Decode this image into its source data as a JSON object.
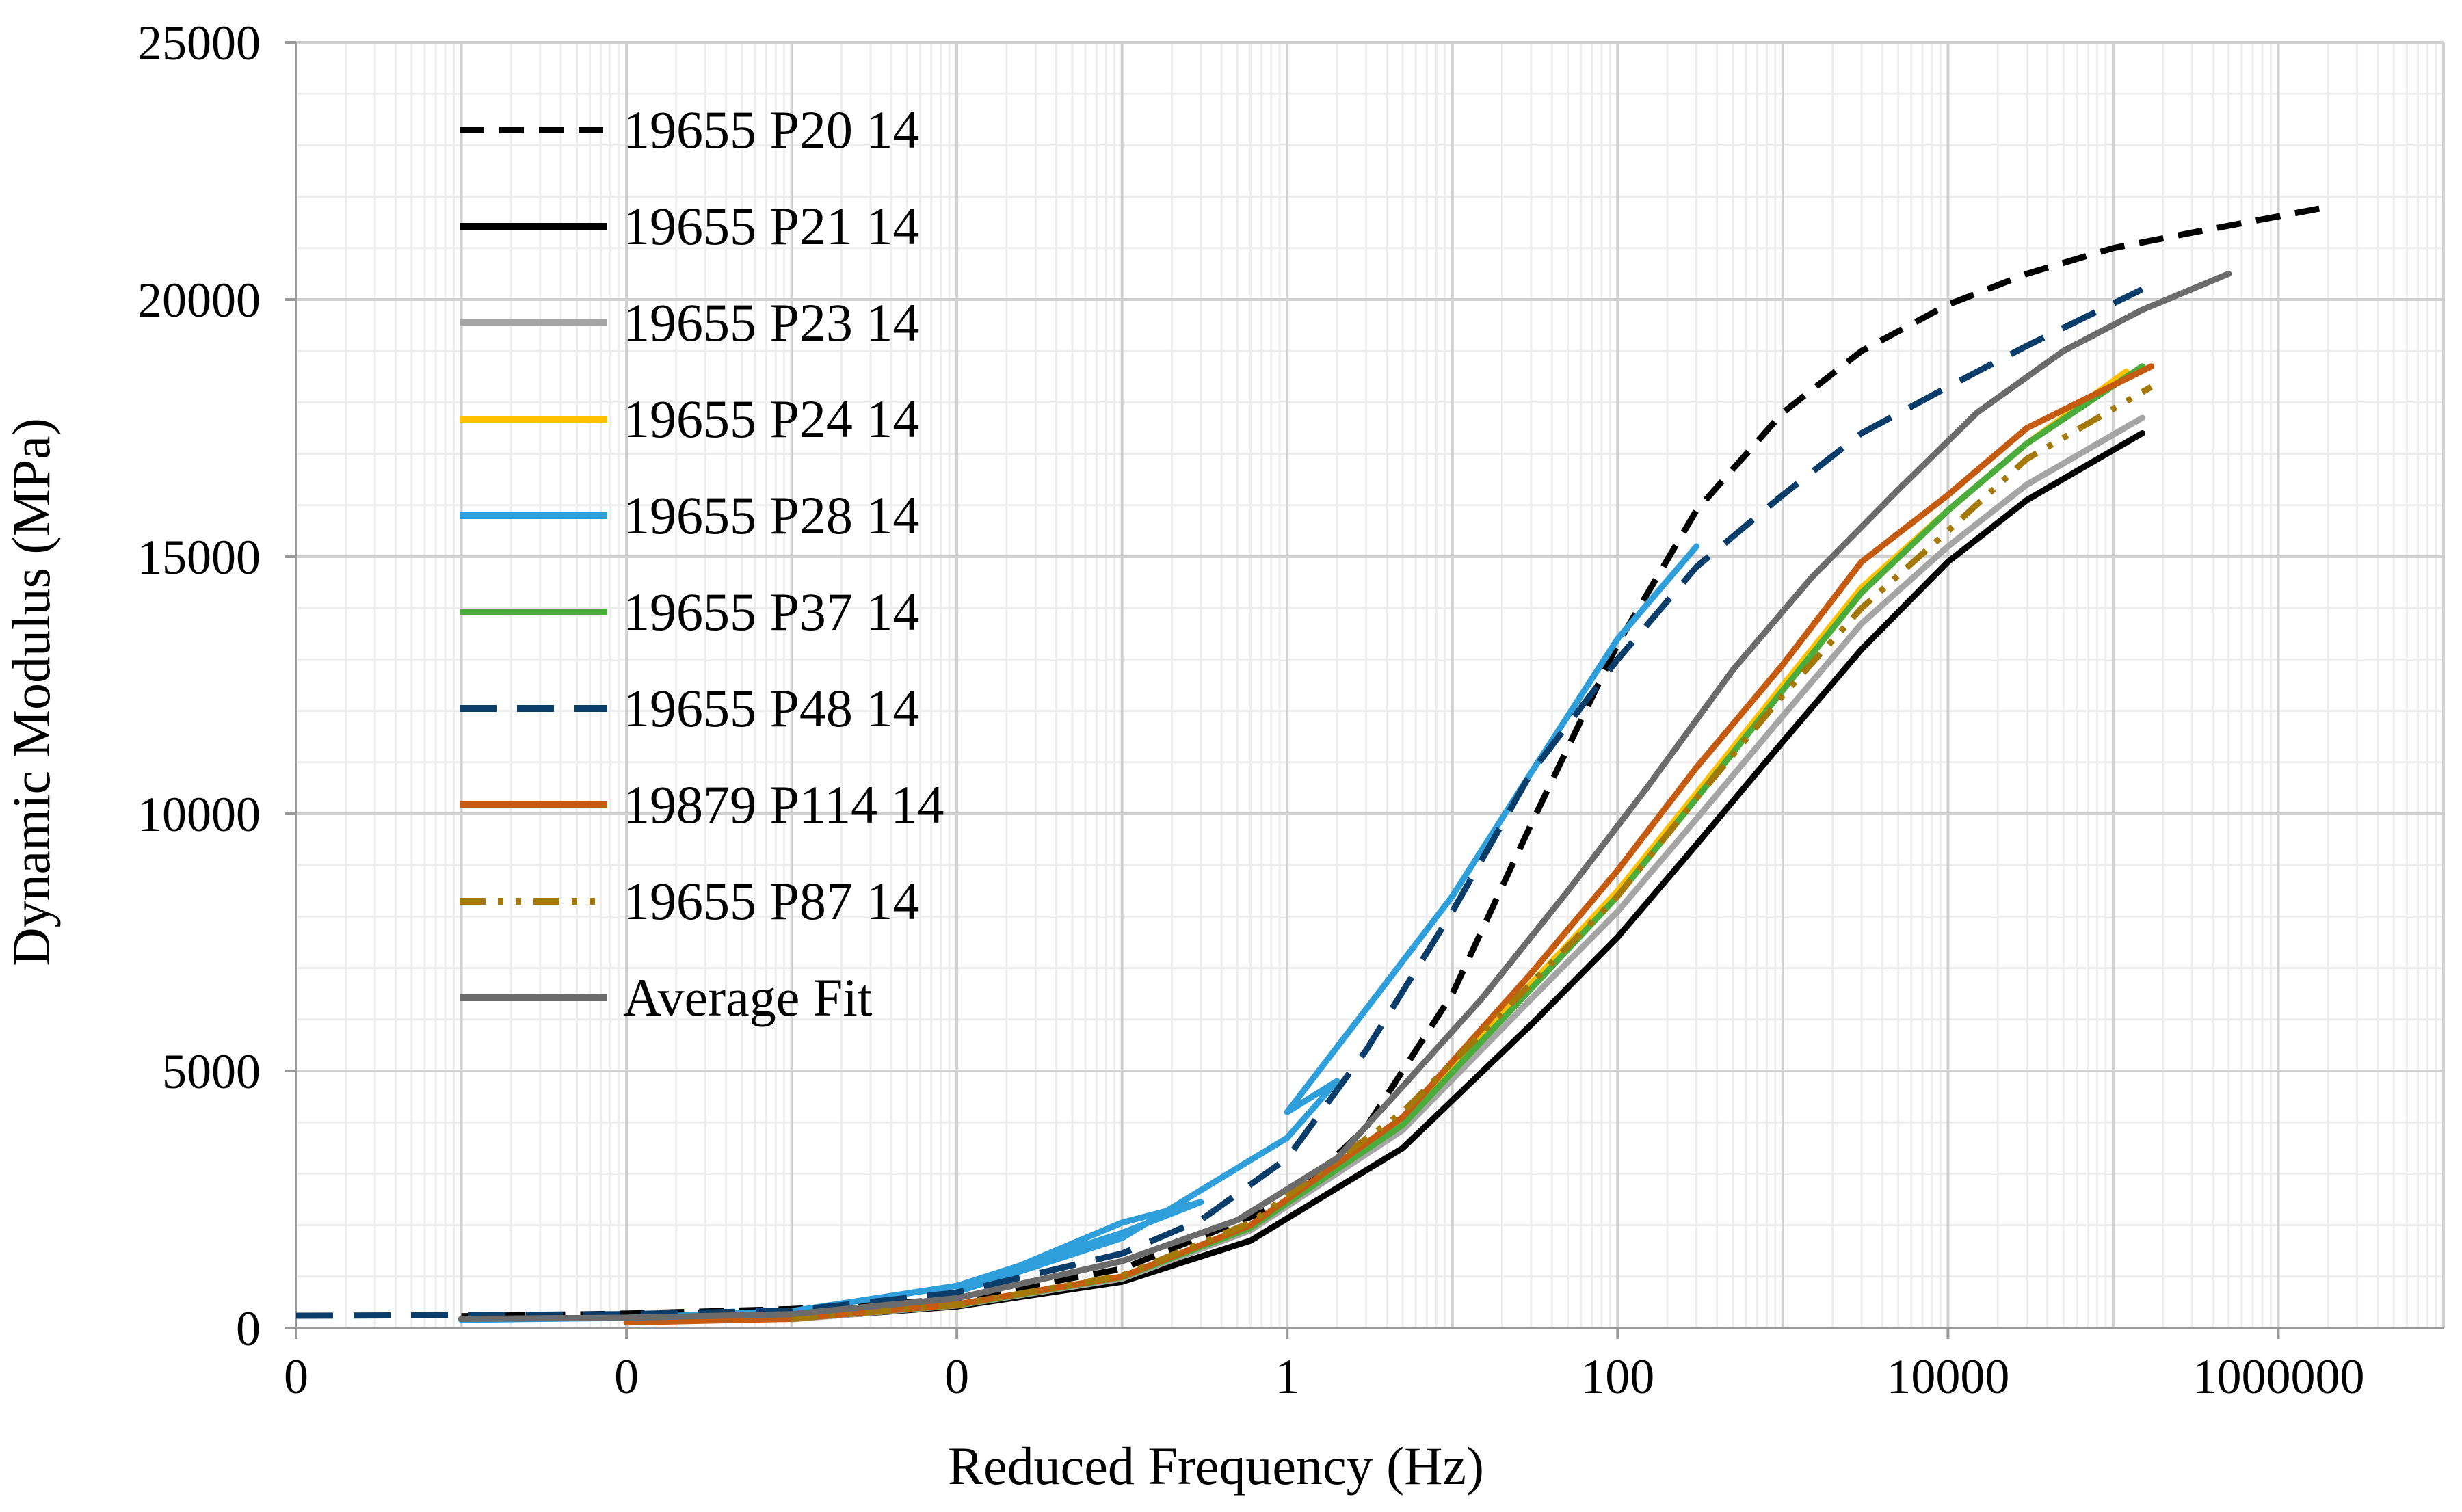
{
  "chart_data": {
    "type": "line",
    "title": "",
    "xlabel": "Reduced Frequency (Hz)",
    "ylabel": "Dynamic Modulus (MPa)",
    "xscale": "log",
    "xlim": [
      1e-06,
      10000000
    ],
    "ylim": [
      0,
      25000
    ],
    "x_tick_values": [
      1e-06,
      0.0001,
      0.01,
      1,
      100,
      10000,
      1000000
    ],
    "x_tick_labels": [
      "0",
      "0",
      "0",
      "1",
      "100",
      "10000",
      "1000000"
    ],
    "y_ticks": [
      0,
      5000,
      10000,
      15000,
      20000,
      25000
    ],
    "grid": "major and minor",
    "legend_position": "top-left",
    "series": [
      {
        "name": "19655 P20 14",
        "color": "#000000",
        "dash": "dash",
        "width": 9,
        "x": [
          1e-05,
          0.0001,
          0.001,
          0.01,
          0.1,
          1,
          3,
          10,
          30,
          100,
          300,
          1000,
          3000,
          10000,
          30000,
          100000,
          300000,
          2000000
        ],
        "y": [
          230,
          280,
          370,
          560,
          1150,
          2450,
          3900,
          6500,
          9800,
          13300,
          15900,
          17800,
          19000,
          19900,
          20500,
          21000,
          21300,
          21800
        ]
      },
      {
        "name": "19655 P21 14",
        "color": "#000000",
        "dash": "solid",
        "width": 9,
        "x": [
          0.001,
          0.01,
          0.1,
          0.6,
          5,
          30,
          100,
          300,
          1000,
          3000,
          10000,
          30000,
          150000
        ],
        "y": [
          180,
          420,
          900,
          1700,
          3500,
          5900,
          7600,
          9400,
          11400,
          13200,
          14900,
          16100,
          17400
        ]
      },
      {
        "name": "19655 P23 14",
        "color": "#a5a5a5",
        "dash": "solid",
        "width": 9,
        "x": [
          0.001,
          0.01,
          0.1,
          0.6,
          5,
          30,
          100,
          300,
          1000,
          3000,
          10000,
          30000,
          150000
        ],
        "y": [
          170,
          440,
          960,
          1900,
          3850,
          6400,
          8100,
          9900,
          11900,
          13700,
          15200,
          16400,
          17700
        ]
      },
      {
        "name": "19655 P24 14",
        "color": "#ffc000",
        "dash": "solid",
        "width": 9,
        "x": [
          0.001,
          0.01,
          0.1,
          0.6,
          5,
          30,
          100,
          300,
          1000,
          3000,
          10000,
          30000,
          120000
        ],
        "y": [
          190,
          460,
          1000,
          1950,
          4000,
          6700,
          8500,
          10400,
          12500,
          14400,
          15900,
          17200,
          18600
        ]
      },
      {
        "name": "19655 P28 14",
        "color": "#2e9fdb",
        "dash": "solid",
        "width": 9,
        "x": [
          1e-05,
          0.0001,
          0.001,
          0.01,
          0.1,
          0.3,
          0.1,
          0.01,
          0.1,
          1,
          2,
          1,
          3,
          10,
          30,
          100,
          300
        ],
        "y": [
          160,
          200,
          330,
          820,
          1850,
          2450,
          2050,
          700,
          1750,
          3700,
          4800,
          4200,
          6200,
          8400,
          10800,
          13400,
          15200
        ]
      },
      {
        "name": "19655 P37 14",
        "color": "#4aad3b",
        "dash": "solid",
        "width": 9,
        "x": [
          0.001,
          0.01,
          0.1,
          0.6,
          5,
          30,
          100,
          300,
          1000,
          3000,
          10000,
          30000,
          150000
        ],
        "y": [
          190,
          450,
          990,
          1950,
          3950,
          6600,
          8400,
          10300,
          12400,
          14300,
          15900,
          17200,
          18700
        ]
      },
      {
        "name": "19655 P48 14",
        "color": "#0b3d6b",
        "dash": "longdash",
        "width": 9,
        "x": [
          1e-06,
          1e-05,
          0.0001,
          0.001,
          0.01,
          0.1,
          0.3,
          1,
          3,
          10,
          30,
          100,
          300,
          1000,
          3000,
          10000,
          30000,
          150000
        ],
        "y": [
          240,
          250,
          270,
          340,
          690,
          1450,
          2100,
          3300,
          5400,
          8100,
          10800,
          13000,
          14800,
          16200,
          17400,
          18300,
          19100,
          20200
        ]
      },
      {
        "name": "19879 P114 14",
        "color": "#c55a11",
        "dash": "solid",
        "width": 9,
        "x": [
          0.0001,
          0.001,
          0.01,
          0.1,
          0.6,
          5,
          30,
          100,
          300,
          1000,
          3000,
          10000,
          30000,
          170000
        ],
        "y": [
          110,
          180,
          460,
          1000,
          2000,
          4100,
          6900,
          8900,
          10900,
          12900,
          14900,
          16200,
          17500,
          18700
        ]
      },
      {
        "name": "19655 P87 14",
        "color": "#a5780a",
        "dash": "dashdotdot",
        "width": 9,
        "x": [
          0.001,
          0.01,
          0.1,
          0.6,
          5,
          30,
          100,
          300,
          1000,
          3000,
          10000,
          30000,
          170000
        ],
        "y": [
          180,
          450,
          1020,
          2050,
          4200,
          6700,
          8400,
          10300,
          12300,
          14000,
          15500,
          16900,
          18300
        ]
      },
      {
        "name": "Average Fit",
        "color": "#6b6b6b",
        "dash": "solid",
        "width": 9,
        "x": [
          1e-05,
          0.0001,
          0.001,
          0.01,
          0.1,
          0.5,
          2,
          5,
          15,
          50,
          150,
          500,
          1500,
          5000,
          15000,
          50000,
          150000,
          500000
        ],
        "y": [
          180,
          200,
          270,
          580,
          1300,
          2100,
          3300,
          4700,
          6400,
          8500,
          10500,
          12800,
          14600,
          16300,
          17800,
          19000,
          19800,
          20500
        ]
      }
    ]
  }
}
